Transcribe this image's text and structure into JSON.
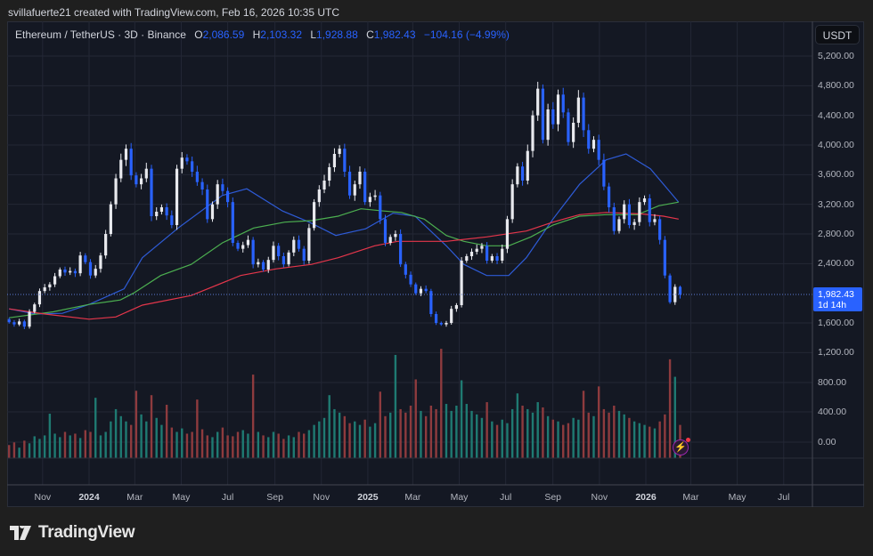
{
  "caption": "svillafuerte21 created with TradingView.com, Feb 16, 2026 10:35 UTC",
  "legend": {
    "symbol": "Ethereum / TetherUS · 3D · Binance",
    "open_label": "O",
    "open": "2,086.59",
    "high_label": "H",
    "high": "2,103.32",
    "low_label": "L",
    "low": "1,928.88",
    "close_label": "C",
    "close": "1,982.43",
    "change": "−104.16 (−4.99%)"
  },
  "currency_button": "USDT",
  "last_price": {
    "value": "1,982.43",
    "countdown": "1d 14h"
  },
  "branding": "TradingView",
  "colors": {
    "up_candle": "#e8e9ee",
    "down_candle": "#2962ff",
    "volume_up": "#1f7a72",
    "volume_down": "#8e3b3e",
    "ma_fast": "#2e5bd6",
    "ma_mid": "#4caf50",
    "ma_slow": "#e5364b",
    "accent": "#2962ff"
  },
  "icons": {
    "alert": "lightning-icon",
    "logo": "tradingview-logo"
  },
  "chart_data": {
    "type": "candlestick",
    "interval": "3D",
    "first_candle": "2023-09-18",
    "last_candle": "2026-02-15",
    "first_open": 1650,
    "closes": [
      1610,
      1580,
      1620,
      1550,
      1750,
      1850,
      2030,
      2080,
      2120,
      2230,
      2320,
      2280,
      2300,
      2270,
      2510,
      2420,
      2240,
      2330,
      2510,
      2800,
      3200,
      3550,
      3800,
      3950,
      3590,
      3470,
      3550,
      3680,
      3040,
      3100,
      3160,
      3050,
      2920,
      3680,
      3830,
      3780,
      3640,
      3500,
      3400,
      3000,
      3200,
      3470,
      3380,
      3230,
      2680,
      2600,
      2650,
      2720,
      2390,
      2420,
      2320,
      2450,
      2640,
      2500,
      2390,
      2550,
      2720,
      2600,
      2440,
      2880,
      3230,
      3400,
      3520,
      3700,
      3880,
      3950,
      3640,
      3320,
      3470,
      3640,
      3230,
      3300,
      3320,
      3000,
      2680,
      2760,
      2800,
      2390,
      2250,
      2120,
      2000,
      2060,
      2030,
      1720,
      1600,
      1580,
      1600,
      1790,
      1840,
      2440,
      2500,
      2560,
      2600,
      2640,
      2440,
      2500,
      2440,
      2600,
      3000,
      3470,
      3710,
      3520,
      3920,
      4400,
      4760,
      4070,
      4480,
      4280,
      4680,
      4440,
      4040,
      4300,
      4640,
      4200,
      3950,
      4070,
      3800,
      3440,
      3160,
      2840,
      3000,
      3200,
      2920,
      2960,
      3230,
      3280,
      2960,
      3000,
      2720,
      2240,
      1880,
      2086.59,
      1982.43
    ],
    "last_high": 2103.32,
    "last_low": 1928.88,
    "volumes": [
      150,
      180,
      120,
      200,
      170,
      250,
      220,
      260,
      508,
      280,
      240,
      300,
      260,
      280,
      230,
      320,
      300,
      690,
      260,
      300,
      420,
      560,
      480,
      420,
      380,
      770,
      500,
      420,
      720,
      460,
      380,
      610,
      350,
      300,
      340,
      280,
      300,
      670,
      330,
      260,
      240,
      300,
      350,
      260,
      250,
      300,
      320,
      280,
      955,
      300,
      260,
      240,
      300,
      280,
      220,
      260,
      240,
      300,
      280,
      320,
      380,
      420,
      460,
      720,
      560,
      520,
      480,
      400,
      420,
      380,
      440,
      360,
      400,
      760,
      480,
      520,
      1180,
      560,
      520,
      600,
      900,
      540,
      480,
      600,
      560,
      1250,
      620,
      540,
      600,
      890,
      620,
      540,
      500,
      460,
      640,
      420,
      380,
      440,
      400,
      560,
      740,
      600,
      560,
      520,
      640,
      580,
      480,
      440,
      420,
      380,
      400,
      460,
      440,
      770,
      520,
      480,
      820,
      560,
      520,
      600,
      540,
      500,
      460,
      420,
      400,
      380,
      360,
      340,
      420,
      500,
      1130,
      930,
      380
    ],
    "moving_averages": [
      {
        "color_key": "ma_fast",
        "points": [
          [
            "2023-09-18",
            1790
          ],
          [
            "2023-10-23",
            1720
          ],
          [
            "2023-11-27",
            1730
          ],
          [
            "2024-01-01",
            1850
          ],
          [
            "2024-02-16",
            2060
          ],
          [
            "2024-03-11",
            2480
          ],
          [
            "2024-04-27",
            2880
          ],
          [
            "2024-06-24",
            3320
          ],
          [
            "2024-07-26",
            3410
          ],
          [
            "2024-09-11",
            3110
          ],
          [
            "2024-10-16",
            2960
          ],
          [
            "2024-11-20",
            2780
          ],
          [
            "2024-12-29",
            2870
          ],
          [
            "2025-02-03",
            3080
          ],
          [
            "2025-03-04",
            3040
          ],
          [
            "2025-04-14",
            2640
          ],
          [
            "2025-05-07",
            2390
          ],
          [
            "2025-06-06",
            2240
          ],
          [
            "2025-07-05",
            2240
          ],
          [
            "2025-07-28",
            2480
          ],
          [
            "2025-09-01",
            3000
          ],
          [
            "2025-10-06",
            3470
          ],
          [
            "2025-11-10",
            3800
          ],
          [
            "2025-12-06",
            3880
          ],
          [
            "2026-01-07",
            3680
          ],
          [
            "2026-01-30",
            3400
          ],
          [
            "2026-02-13",
            3230
          ]
        ]
      },
      {
        "color_key": "ma_mid",
        "points": [
          [
            "2023-09-18",
            1670
          ],
          [
            "2023-11-15",
            1750
          ],
          [
            "2024-01-01",
            1850
          ],
          [
            "2024-02-11",
            1910
          ],
          [
            "2024-02-28",
            2000
          ],
          [
            "2024-04-04",
            2240
          ],
          [
            "2024-05-14",
            2390
          ],
          [
            "2024-06-24",
            2680
          ],
          [
            "2024-08-04",
            2880
          ],
          [
            "2024-09-14",
            2960
          ],
          [
            "2024-10-19",
            2980
          ],
          [
            "2024-11-23",
            3040
          ],
          [
            "2024-12-23",
            3140
          ],
          [
            "2025-01-22",
            3110
          ],
          [
            "2025-02-14",
            3090
          ],
          [
            "2025-03-16",
            3000
          ],
          [
            "2025-04-14",
            2780
          ],
          [
            "2025-05-07",
            2700
          ],
          [
            "2025-06-06",
            2640
          ],
          [
            "2025-07-05",
            2640
          ],
          [
            "2025-08-03",
            2760
          ],
          [
            "2025-09-01",
            2920
          ],
          [
            "2025-10-06",
            3040
          ],
          [
            "2025-11-10",
            3060
          ],
          [
            "2025-12-21",
            3060
          ],
          [
            "2026-01-18",
            3180
          ],
          [
            "2026-02-13",
            3230
          ]
        ]
      },
      {
        "color_key": "ma_slow",
        "points": [
          [
            "2023-09-18",
            1790
          ],
          [
            "2023-11-04",
            1720
          ],
          [
            "2024-01-01",
            1650
          ],
          [
            "2024-02-05",
            1680
          ],
          [
            "2024-03-11",
            1840
          ],
          [
            "2024-05-14",
            1970
          ],
          [
            "2024-07-18",
            2240
          ],
          [
            "2024-09-03",
            2330
          ],
          [
            "2024-10-19",
            2390
          ],
          [
            "2024-11-23",
            2480
          ],
          [
            "2025-01-10",
            2640
          ],
          [
            "2025-02-09",
            2700
          ],
          [
            "2025-04-14",
            2700
          ],
          [
            "2025-06-06",
            2760
          ],
          [
            "2025-07-28",
            2840
          ],
          [
            "2025-09-01",
            2960
          ],
          [
            "2025-10-06",
            3060
          ],
          [
            "2025-11-10",
            3090
          ],
          [
            "2025-12-27",
            3070
          ],
          [
            "2026-01-24",
            3040
          ],
          [
            "2026-02-13",
            3000
          ]
        ]
      }
    ],
    "price_axis": [
      "5,200.00",
      "4,800.00",
      "4,400.00",
      "4,000.00",
      "3,600.00",
      "3,200.00",
      "2,800.00",
      "2,400.00",
      "1,600.00",
      "1,200.00"
    ],
    "price_axis_values": [
      5200,
      4800,
      4400,
      4000,
      3600,
      3200,
      2800,
      2400,
      1600,
      1200
    ],
    "volume_axis": [
      "800.00",
      "400.00",
      "0.00"
    ],
    "time_axis": [
      {
        "label": "Nov",
        "date": "2023-11-01",
        "year": false
      },
      {
        "label": "2024",
        "date": "2024-01-01",
        "year": true
      },
      {
        "label": "Mar",
        "date": "2024-03-01",
        "year": false
      },
      {
        "label": "May",
        "date": "2024-05-01",
        "year": false
      },
      {
        "label": "Jul",
        "date": "2024-07-01",
        "year": false
      },
      {
        "label": "Sep",
        "date": "2024-09-01",
        "year": false
      },
      {
        "label": "Nov",
        "date": "2024-11-01",
        "year": false
      },
      {
        "label": "2025",
        "date": "2025-01-01",
        "year": true
      },
      {
        "label": "Mar",
        "date": "2025-03-01",
        "year": false
      },
      {
        "label": "May",
        "date": "2025-05-01",
        "year": false
      },
      {
        "label": "Jul",
        "date": "2025-07-01",
        "year": false
      },
      {
        "label": "Sep",
        "date": "2025-09-01",
        "year": false
      },
      {
        "label": "Nov",
        "date": "2025-11-01",
        "year": false
      },
      {
        "label": "2026",
        "date": "2026-01-01",
        "year": true
      },
      {
        "label": "Mar",
        "date": "2026-03-01",
        "year": false
      },
      {
        "label": "May",
        "date": "2026-05-01",
        "year": false
      },
      {
        "label": "Jul",
        "date": "2026-07-01",
        "year": false
      }
    ]
  }
}
